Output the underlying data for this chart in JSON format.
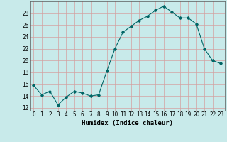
{
  "x": [
    0,
    1,
    2,
    3,
    4,
    5,
    6,
    7,
    8,
    9,
    10,
    11,
    12,
    13,
    14,
    15,
    16,
    17,
    18,
    19,
    20,
    21,
    22,
    23
  ],
  "y": [
    15.8,
    14.2,
    14.8,
    12.5,
    13.8,
    14.8,
    14.5,
    14.0,
    14.2,
    18.2,
    22.0,
    24.8,
    25.8,
    26.8,
    27.5,
    28.5,
    29.2,
    28.2,
    27.2,
    27.2,
    26.2,
    22.0,
    20.0,
    19.5
  ],
  "xlabel": "Humidex (Indice chaleur)",
  "ylim": [
    11.5,
    30
  ],
  "yticks": [
    12,
    14,
    16,
    18,
    20,
    22,
    24,
    26,
    28
  ],
  "xticks": [
    0,
    1,
    2,
    3,
    4,
    5,
    6,
    7,
    8,
    9,
    10,
    11,
    12,
    13,
    14,
    15,
    16,
    17,
    18,
    19,
    20,
    21,
    22,
    23
  ],
  "line_color": "#006666",
  "marker": "D",
  "marker_size": 1.8,
  "bg_color": "#c8eaea",
  "grid_color": "#d4a0a0",
  "xlabel_fontsize": 6.5,
  "tick_fontsize": 5.5
}
